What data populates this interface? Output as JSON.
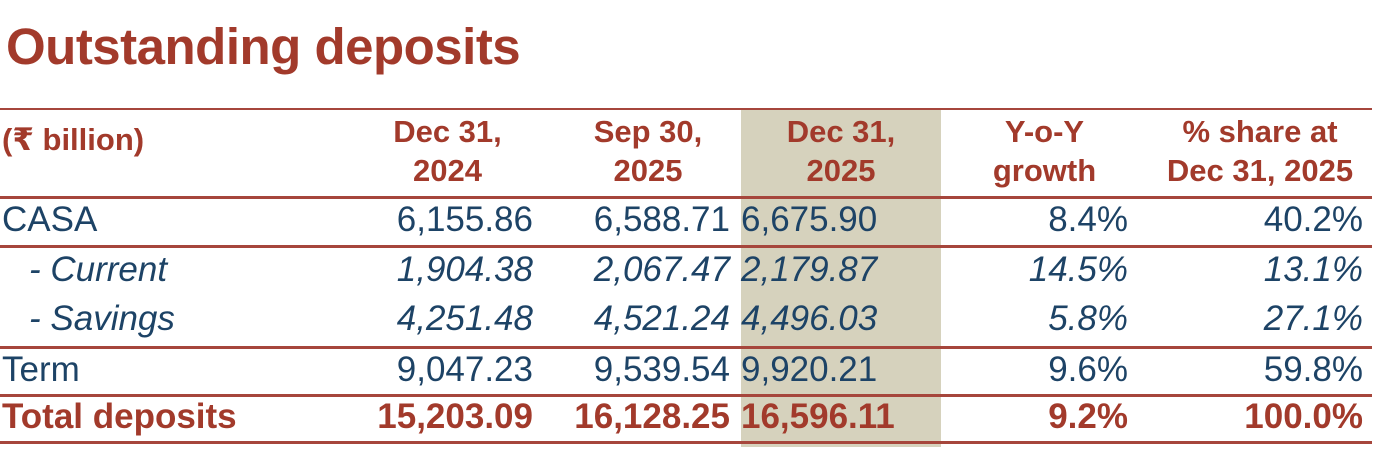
{
  "title": "Outstanding deposits",
  "colors": {
    "red_text": "#A23A2B",
    "line_red": "#A6463C",
    "navy_text": "#1D4366",
    "highlight_beige": "#D6D2BD",
    "background": "#FFFFFF"
  },
  "table": {
    "unit_label": "(₹ billion)",
    "column_headers": [
      "Dec 31,\n2024",
      "Sep 30,\n2025",
      "Dec 31,\n2025",
      "Y-o-Y\ngrowth",
      "% share at\nDec 31, 2025"
    ],
    "highlighted_column": "Dec 31, 2025",
    "rows": [
      {
        "label": "CASA",
        "emphasis": "normal",
        "values": [
          "6,155.86",
          "6,588.71",
          "6,675.90",
          "8.4%",
          "40.2%"
        ]
      },
      {
        "label": "- Current",
        "emphasis": "italic",
        "values": [
          "1,904.38",
          "2,067.47",
          "2,179.87",
          "14.5%",
          "13.1%"
        ]
      },
      {
        "label": "- Savings",
        "emphasis": "italic",
        "values": [
          "4,251.48",
          "4,521.24",
          "4,496.03",
          "5.8%",
          "27.1%"
        ]
      },
      {
        "label": "Term",
        "emphasis": "normal",
        "values": [
          "9,047.23",
          "9,539.54",
          "9,920.21",
          "9.6%",
          "59.8%"
        ]
      },
      {
        "label": "Total deposits",
        "emphasis": "total",
        "values": [
          "15,203.09",
          "16,128.25",
          "16,596.11",
          "9.2%",
          "100.0%"
        ]
      }
    ]
  }
}
